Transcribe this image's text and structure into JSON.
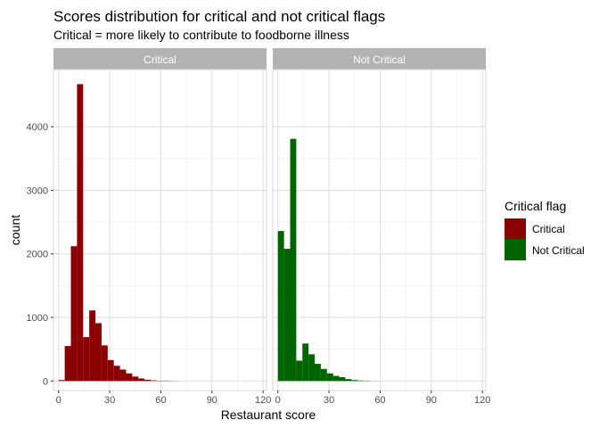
{
  "chart_data": {
    "type": "bar",
    "title": "Scores distribution for critical and not critical flags",
    "subtitle": "Critical = more likely to contribute to foodborne illness",
    "xlabel": "Restaurant score",
    "ylabel": "count",
    "xlim": [
      -3,
      122
    ],
    "ylim": [
      -150,
      4900
    ],
    "x_ticks": [
      0,
      30,
      60,
      90,
      120
    ],
    "y_ticks": [
      0,
      1000,
      2000,
      3000,
      4000
    ],
    "binwidth": 3.6,
    "grid": true,
    "legend": {
      "title": "Critical flag",
      "position": "right",
      "entries": [
        {
          "label": "Critical",
          "color": "#8b0000"
        },
        {
          "label": "Not Critical",
          "color": "#006400"
        }
      ]
    },
    "panels": [
      {
        "strip": "Critical",
        "series": "Critical",
        "color": "#8b0000",
        "bins_start": 0,
        "values": [
          15,
          550,
          2120,
          4670,
          690,
          1110,
          910,
          560,
          330,
          240,
          180,
          120,
          70,
          40,
          20,
          10,
          5,
          5,
          2,
          1,
          0
        ]
      },
      {
        "strip": "Not Critical",
        "series": "Not Critical",
        "color": "#006400",
        "bins_start": 0,
        "values": [
          2360,
          2080,
          3810,
          320,
          590,
          420,
          270,
          190,
          120,
          80,
          60,
          30,
          15,
          8,
          5,
          2,
          1,
          0
        ]
      }
    ]
  }
}
